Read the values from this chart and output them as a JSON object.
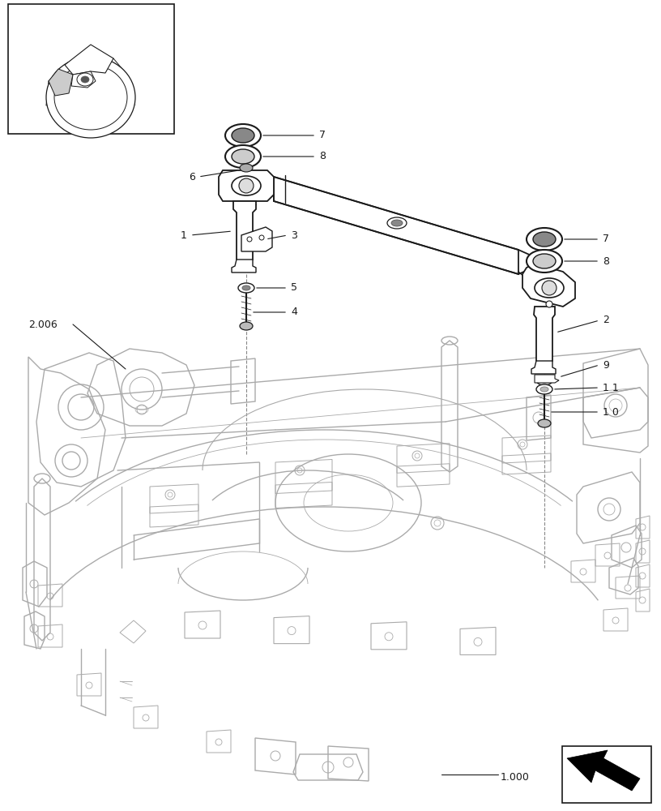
{
  "bg_color": "#ffffff",
  "line_color": "#1a1a1a",
  "light_color": "#aaaaaa",
  "fig_width": 8.16,
  "fig_height": 10.0,
  "dpi": 100
}
